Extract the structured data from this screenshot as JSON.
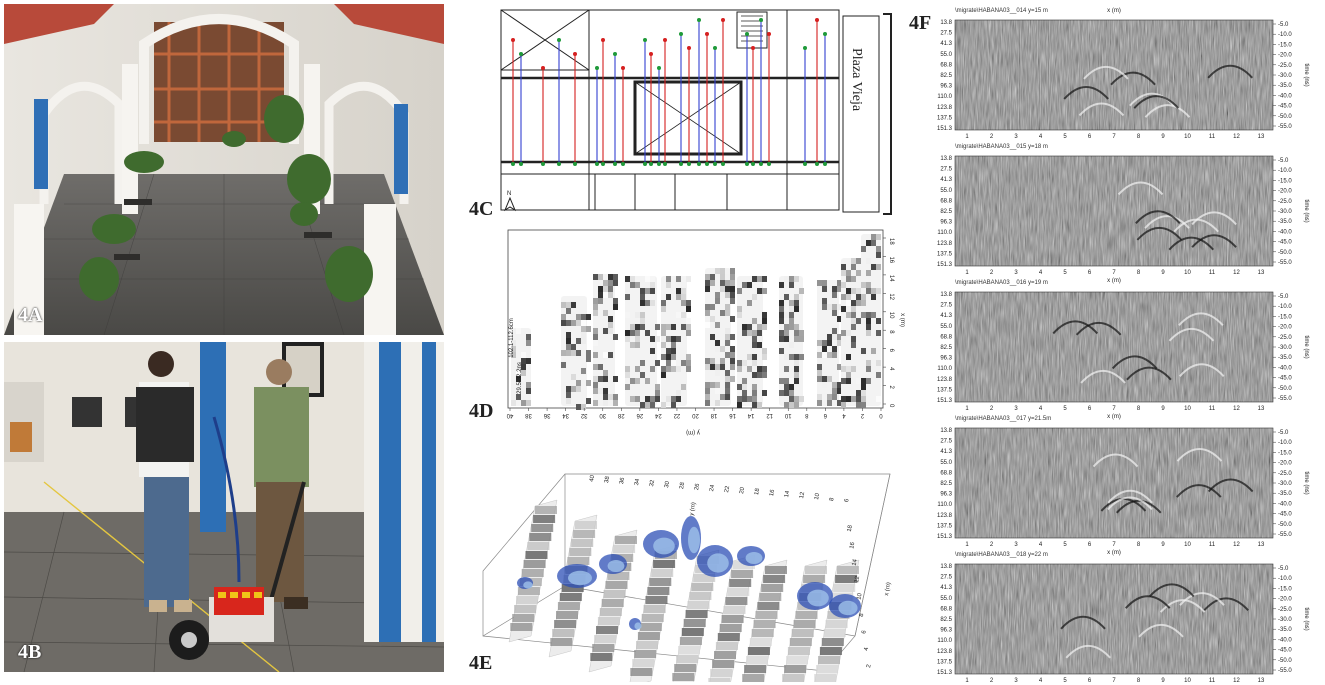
{
  "panels": {
    "a": {
      "label": "4A"
    },
    "b": {
      "label": "4B"
    },
    "c": {
      "label": "4C",
      "plaza": "Plaza Vieja"
    },
    "d": {
      "label": "4D",
      "xaxis_ticks": [
        "40",
        "38",
        "36",
        "34",
        "32",
        "30",
        "28",
        "26",
        "24",
        "22",
        "20",
        "18",
        "16",
        "14",
        "12",
        "10",
        "8",
        "6",
        "4",
        "2",
        "0"
      ],
      "yaxis_ticks": [
        "0",
        "2",
        "4",
        "6",
        "8",
        "10",
        "12",
        "14",
        "16",
        "18"
      ],
      "yaxis_label": "x (m)",
      "xaxis_label": "y (m)",
      "side_label_1": "102.1-112.6cm",
      "side_label_2": "29.5-32.2ns"
    },
    "e": {
      "label": "4E",
      "y_ticks": [
        "40",
        "38",
        "36",
        "34",
        "32",
        "30",
        "28",
        "26",
        "24",
        "22",
        "20",
        "18",
        "16",
        "14",
        "12",
        "10",
        "8",
        "6"
      ],
      "y_label": "y (m)",
      "x_ticks": [
        "2",
        "4",
        "6",
        "8",
        "10",
        "12",
        "14",
        "16",
        "18"
      ],
      "x_label": "x (m)"
    },
    "f": {
      "label": "4F",
      "radargrams": [
        {
          "title": "\\migrate\\HABANA03__014   y=15 m",
          "x_label": "x (m)",
          "x_label_pos": "top"
        },
        {
          "title": "\\migrate\\HABANA03__015   y=18 m",
          "x_label": "x (m)",
          "x_label_pos": "bottom"
        },
        {
          "title": "\\migrate\\HABANA03__016   y=19 m",
          "x_label": "x (m)",
          "x_label_pos": "bottom"
        },
        {
          "title": "\\migrate\\HABANA03__017   y=21.5m",
          "x_label": "x (m)",
          "x_label_pos": "bottom"
        },
        {
          "title": "\\migrate\\HABANA03__018   y=22 m",
          "x_label": "x (m)",
          "x_label_pos": "bottom"
        }
      ],
      "left_ticks": [
        "13.8",
        "27.5",
        "41.3",
        "55.0",
        "68.8",
        "82.5",
        "96.3",
        "110.0",
        "123.8",
        "137.5",
        "151.3"
      ],
      "right_ticks": [
        "5.0",
        "10.0",
        "15.0",
        "20.0",
        "25.0",
        "30.0",
        "35.0",
        "40.0",
        "45.0",
        "50.0",
        "55.0"
      ],
      "right_label": "time (ns)",
      "x_ticks": [
        "1",
        "2",
        "3",
        "4",
        "5",
        "6",
        "7",
        "8",
        "9",
        "10",
        "11",
        "12",
        "13"
      ]
    }
  },
  "colors": {
    "red_line": "#d62020",
    "blue_line": "#3340d0",
    "green_dot": "#1f9a3a",
    "slice_blue": "#2c4fb5"
  }
}
